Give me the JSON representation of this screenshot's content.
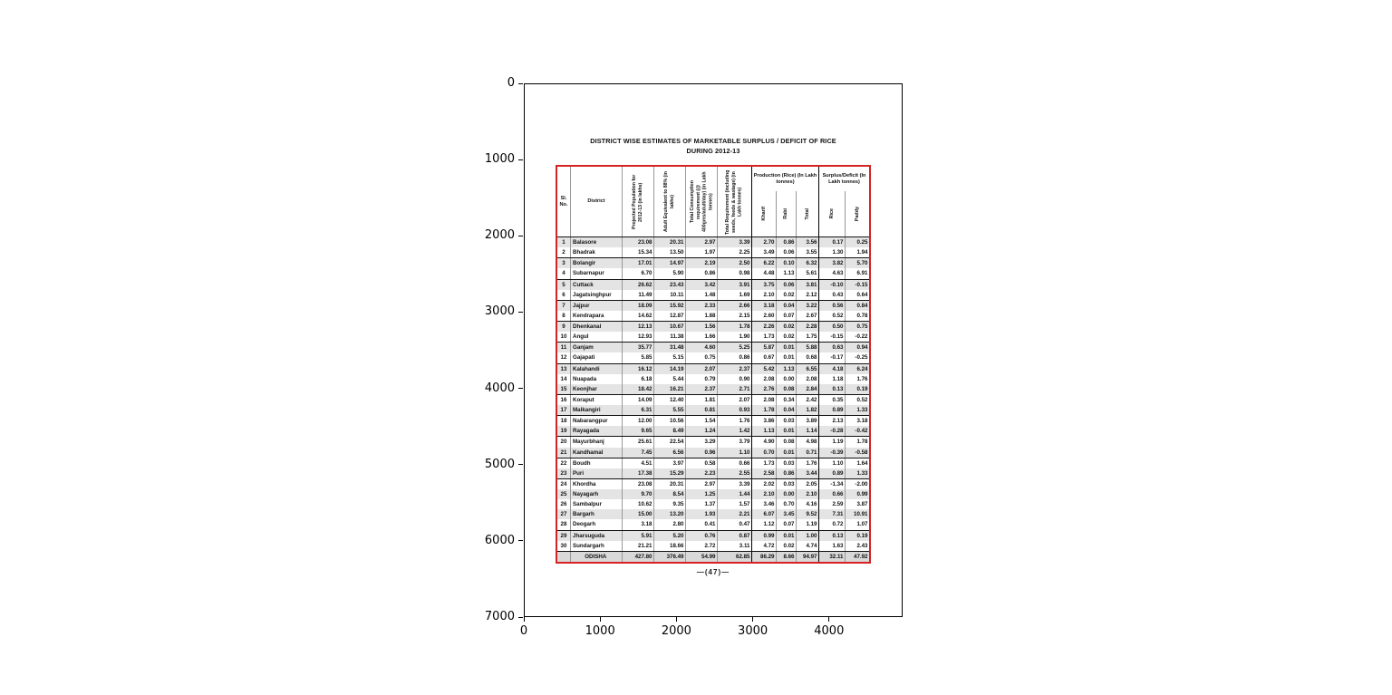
{
  "figure": {
    "page_label": "—(47)—",
    "red_border_color": "#d52222",
    "zebra_color": "#e4e4e4"
  },
  "axes": {
    "x_ticks": [
      "0",
      "1000",
      "2000",
      "3000",
      "4000"
    ],
    "y_ticks": [
      "0",
      "1000",
      "2000",
      "3000",
      "4000",
      "5000",
      "6000",
      "7000"
    ],
    "x_range": [
      0,
      4975
    ],
    "y_range": [
      7000,
      0
    ],
    "grid": false
  },
  "chart_data": {
    "type": "table",
    "title": "DISTRICT WISE ESTIMATES OF MARKETABLE SURPLUS / DEFICIT OF RICE",
    "subtitle": "DURING 2012-13",
    "header": {
      "sl": "Sl. No.",
      "district": "District",
      "pop": "Projected Population for 2012-13 (in lakhs)",
      "adult": "Adult Equivalent to 88% (in lakhs)",
      "cons": "Total Consumption requirement (@ 400gms/adult/day) (in Lakh tonnes)",
      "req": "Total Requirement (including seeds, feeds & wastage) (in Lakh tonnes)",
      "prod_group": "Production (Rice) (In Lakh tonnes)",
      "kharif": "Kharif",
      "rabi": "Rabi",
      "total": "Total",
      "surplus_group": "Surplus/Deficit (In Lakh tonnes)",
      "rice": "Rice",
      "paddy": "Paddy"
    },
    "rows": [
      {
        "sl": "1",
        "district": "Balasore",
        "values": [
          "23.08",
          "20.31",
          "2.97",
          "3.39",
          "2.70",
          "0.86",
          "3.56",
          "0.17",
          "0.25"
        ],
        "thick_top": false
      },
      {
        "sl": "2",
        "district": "Bhadrak",
        "values": [
          "15.34",
          "13.50",
          "1.97",
          "2.25",
          "3.49",
          "0.06",
          "3.55",
          "1.30",
          "1.94"
        ],
        "thick_top": false
      },
      {
        "sl": "3",
        "district": "Bolangir",
        "values": [
          "17.01",
          "14.97",
          "2.19",
          "2.50",
          "6.22",
          "0.10",
          "6.32",
          "3.82",
          "5.70"
        ],
        "thick_top": true
      },
      {
        "sl": "4",
        "district": "Subarnapur",
        "values": [
          "6.70",
          "5.90",
          "0.86",
          "0.98",
          "4.48",
          "1.13",
          "5.61",
          "4.63",
          "6.91"
        ],
        "thick_top": false
      },
      {
        "sl": "5",
        "district": "Cuttack",
        "values": [
          "26.62",
          "23.43",
          "3.42",
          "3.91",
          "3.75",
          "0.06",
          "3.81",
          "-0.10",
          "-0.15"
        ],
        "thick_top": true
      },
      {
        "sl": "6",
        "district": "Jagatsinghpur",
        "values": [
          "11.49",
          "10.11",
          "1.48",
          "1.69",
          "2.10",
          "0.02",
          "2.12",
          "0.43",
          "0.64"
        ],
        "thick_top": false
      },
      {
        "sl": "7",
        "district": "Jajpur",
        "values": [
          "18.09",
          "15.92",
          "2.33",
          "2.66",
          "3.18",
          "0.04",
          "3.22",
          "0.56",
          "0.84"
        ],
        "thick_top": true
      },
      {
        "sl": "8",
        "district": "Kendrapara",
        "values": [
          "14.62",
          "12.87",
          "1.88",
          "2.15",
          "2.60",
          "0.07",
          "2.67",
          "0.52",
          "0.78"
        ],
        "thick_top": false
      },
      {
        "sl": "9",
        "district": "Dhenkanal",
        "values": [
          "12.13",
          "10.67",
          "1.56",
          "1.78",
          "2.26",
          "0.02",
          "2.28",
          "0.50",
          "0.75"
        ],
        "thick_top": true
      },
      {
        "sl": "10",
        "district": "Angul",
        "values": [
          "12.93",
          "11.38",
          "1.66",
          "1.90",
          "1.73",
          "0.02",
          "1.75",
          "-0.15",
          "-0.22"
        ],
        "thick_top": false
      },
      {
        "sl": "11",
        "district": "Ganjam",
        "values": [
          "35.77",
          "31.48",
          "4.60",
          "5.25",
          "5.87",
          "0.01",
          "5.88",
          "0.63",
          "0.94"
        ],
        "thick_top": true
      },
      {
        "sl": "12",
        "district": "Gajapati",
        "values": [
          "5.85",
          "5.15",
          "0.75",
          "0.86",
          "0.67",
          "0.01",
          "0.68",
          "-0.17",
          "-0.25"
        ],
        "thick_top": false
      },
      {
        "sl": "13",
        "district": "Kalahandi",
        "values": [
          "16.12",
          "14.19",
          "2.07",
          "2.37",
          "5.42",
          "1.13",
          "6.55",
          "4.18",
          "6.24"
        ],
        "thick_top": true
      },
      {
        "sl": "14",
        "district": "Nuapada",
        "values": [
          "6.18",
          "5.44",
          "0.79",
          "0.90",
          "2.08",
          "0.00",
          "2.08",
          "1.18",
          "1.76"
        ],
        "thick_top": false
      },
      {
        "sl": "15",
        "district": "Keonjhar",
        "values": [
          "18.42",
          "16.21",
          "2.37",
          "2.71",
          "2.76",
          "0.08",
          "2.84",
          "0.13",
          "0.19"
        ],
        "thick_top": false
      },
      {
        "sl": "16",
        "district": "Koraput",
        "values": [
          "14.09",
          "12.40",
          "1.81",
          "2.07",
          "2.08",
          "0.34",
          "2.42",
          "0.35",
          "0.52"
        ],
        "thick_top": true
      },
      {
        "sl": "17",
        "district": "Malkangiri",
        "values": [
          "6.31",
          "5.55",
          "0.81",
          "0.93",
          "1.78",
          "0.04",
          "1.82",
          "0.89",
          "1.33"
        ],
        "thick_top": false
      },
      {
        "sl": "18",
        "district": "Nabarangpur",
        "values": [
          "12.00",
          "10.56",
          "1.54",
          "1.76",
          "3.86",
          "0.03",
          "3.89",
          "2.13",
          "3.18"
        ],
        "thick_top": true
      },
      {
        "sl": "19",
        "district": "Rayagada",
        "values": [
          "9.65",
          "8.49",
          "1.24",
          "1.42",
          "1.13",
          "0.01",
          "1.14",
          "-0.28",
          "-0.42"
        ],
        "thick_top": false
      },
      {
        "sl": "20",
        "district": "Mayurbhanj",
        "values": [
          "25.61",
          "22.54",
          "3.29",
          "3.79",
          "4.90",
          "0.08",
          "4.98",
          "1.19",
          "1.78"
        ],
        "thick_top": true
      },
      {
        "sl": "21",
        "district": "Kandhamal",
        "values": [
          "7.45",
          "6.56",
          "0.96",
          "1.10",
          "0.70",
          "0.01",
          "0.71",
          "-0.39",
          "-0.58"
        ],
        "thick_top": false
      },
      {
        "sl": "22",
        "district": "Boudh",
        "values": [
          "4.51",
          "3.97",
          "0.58",
          "0.66",
          "1.73",
          "0.03",
          "1.76",
          "1.10",
          "1.64"
        ],
        "thick_top": true
      },
      {
        "sl": "23",
        "district": "Puri",
        "values": [
          "17.38",
          "15.29",
          "2.23",
          "2.55",
          "2.58",
          "0.86",
          "3.44",
          "0.89",
          "1.33"
        ],
        "thick_top": false
      },
      {
        "sl": "24",
        "district": "Khordha",
        "values": [
          "23.08",
          "20.31",
          "2.97",
          "3.39",
          "2.02",
          "0.03",
          "2.05",
          "-1.34",
          "-2.00"
        ],
        "thick_top": true
      },
      {
        "sl": "25",
        "district": "Nayagarh",
        "values": [
          "9.70",
          "8.54",
          "1.25",
          "1.44",
          "2.10",
          "0.00",
          "2.10",
          "0.66",
          "0.99"
        ],
        "thick_top": false
      },
      {
        "sl": "26",
        "district": "Sambalpur",
        "values": [
          "10.62",
          "9.35",
          "1.37",
          "1.57",
          "3.46",
          "0.70",
          "4.16",
          "2.59",
          "3.87"
        ],
        "thick_top": false
      },
      {
        "sl": "27",
        "district": "Bargarh",
        "values": [
          "15.00",
          "13.20",
          "1.93",
          "2.21",
          "6.07",
          "3.45",
          "9.52",
          "7.31",
          "10.91"
        ],
        "thick_top": false
      },
      {
        "sl": "28",
        "district": "Deogarh",
        "values": [
          "3.18",
          "2.80",
          "0.41",
          "0.47",
          "1.12",
          "0.07",
          "1.19",
          "0.72",
          "1.07"
        ],
        "thick_top": false
      },
      {
        "sl": "29",
        "district": "Jharsuguda",
        "values": [
          "5.91",
          "5.20",
          "0.76",
          "0.87",
          "0.99",
          "0.01",
          "1.00",
          "0.13",
          "0.19"
        ],
        "thick_top": true
      },
      {
        "sl": "30",
        "district": "Sundargarh",
        "values": [
          "21.21",
          "18.66",
          "2.72",
          "3.11",
          "4.72",
          "0.02",
          "4.74",
          "1.63",
          "2.43"
        ],
        "thick_top": false
      }
    ],
    "total_row": {
      "label": "ODISHA",
      "values": [
        "427.80",
        "376.49",
        "54.99",
        "62.85",
        "86.29",
        "8.66",
        "94.97",
        "32.11",
        "47.92"
      ]
    }
  }
}
